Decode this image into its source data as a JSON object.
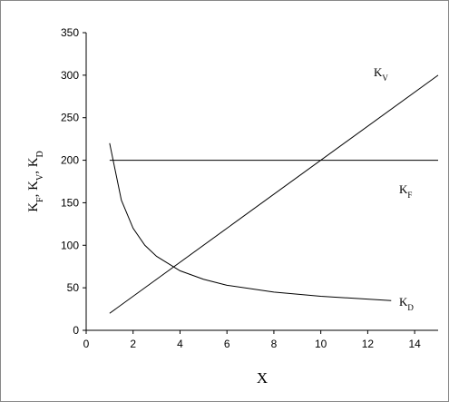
{
  "chart_data": {
    "type": "line",
    "x_label": "X",
    "y_label_parts": [
      {
        "text": "K"
      },
      {
        "sub": "F"
      },
      {
        "text": ", K"
      },
      {
        "sub": "V"
      },
      {
        "text": ", K"
      },
      {
        "sub": "D"
      }
    ],
    "xlim": [
      0,
      15
    ],
    "xticks": [
      0,
      2,
      4,
      6,
      8,
      10,
      12,
      14
    ],
    "ylim": [
      0,
      350
    ],
    "yticks": [
      0,
      50,
      100,
      150,
      200,
      250,
      300,
      350
    ],
    "grid": false,
    "series": [
      {
        "name": "K",
        "subscript": "V",
        "color": "#000000",
        "x": [
          1,
          15
        ],
        "values": [
          20,
          300
        ]
      },
      {
        "name": "K",
        "subscript": "F",
        "color": "#000000",
        "x": [
          1,
          15
        ],
        "values": [
          200,
          200
        ]
      },
      {
        "name": "K",
        "subscript": "D",
        "color": "#000000",
        "x": [
          1,
          1.5,
          2,
          2.5,
          3,
          4,
          5,
          6,
          8,
          10,
          13
        ],
        "values": [
          220,
          153,
          120,
          100,
          87,
          70,
          60,
          53,
          45,
          40,
          35
        ]
      }
    ]
  }
}
